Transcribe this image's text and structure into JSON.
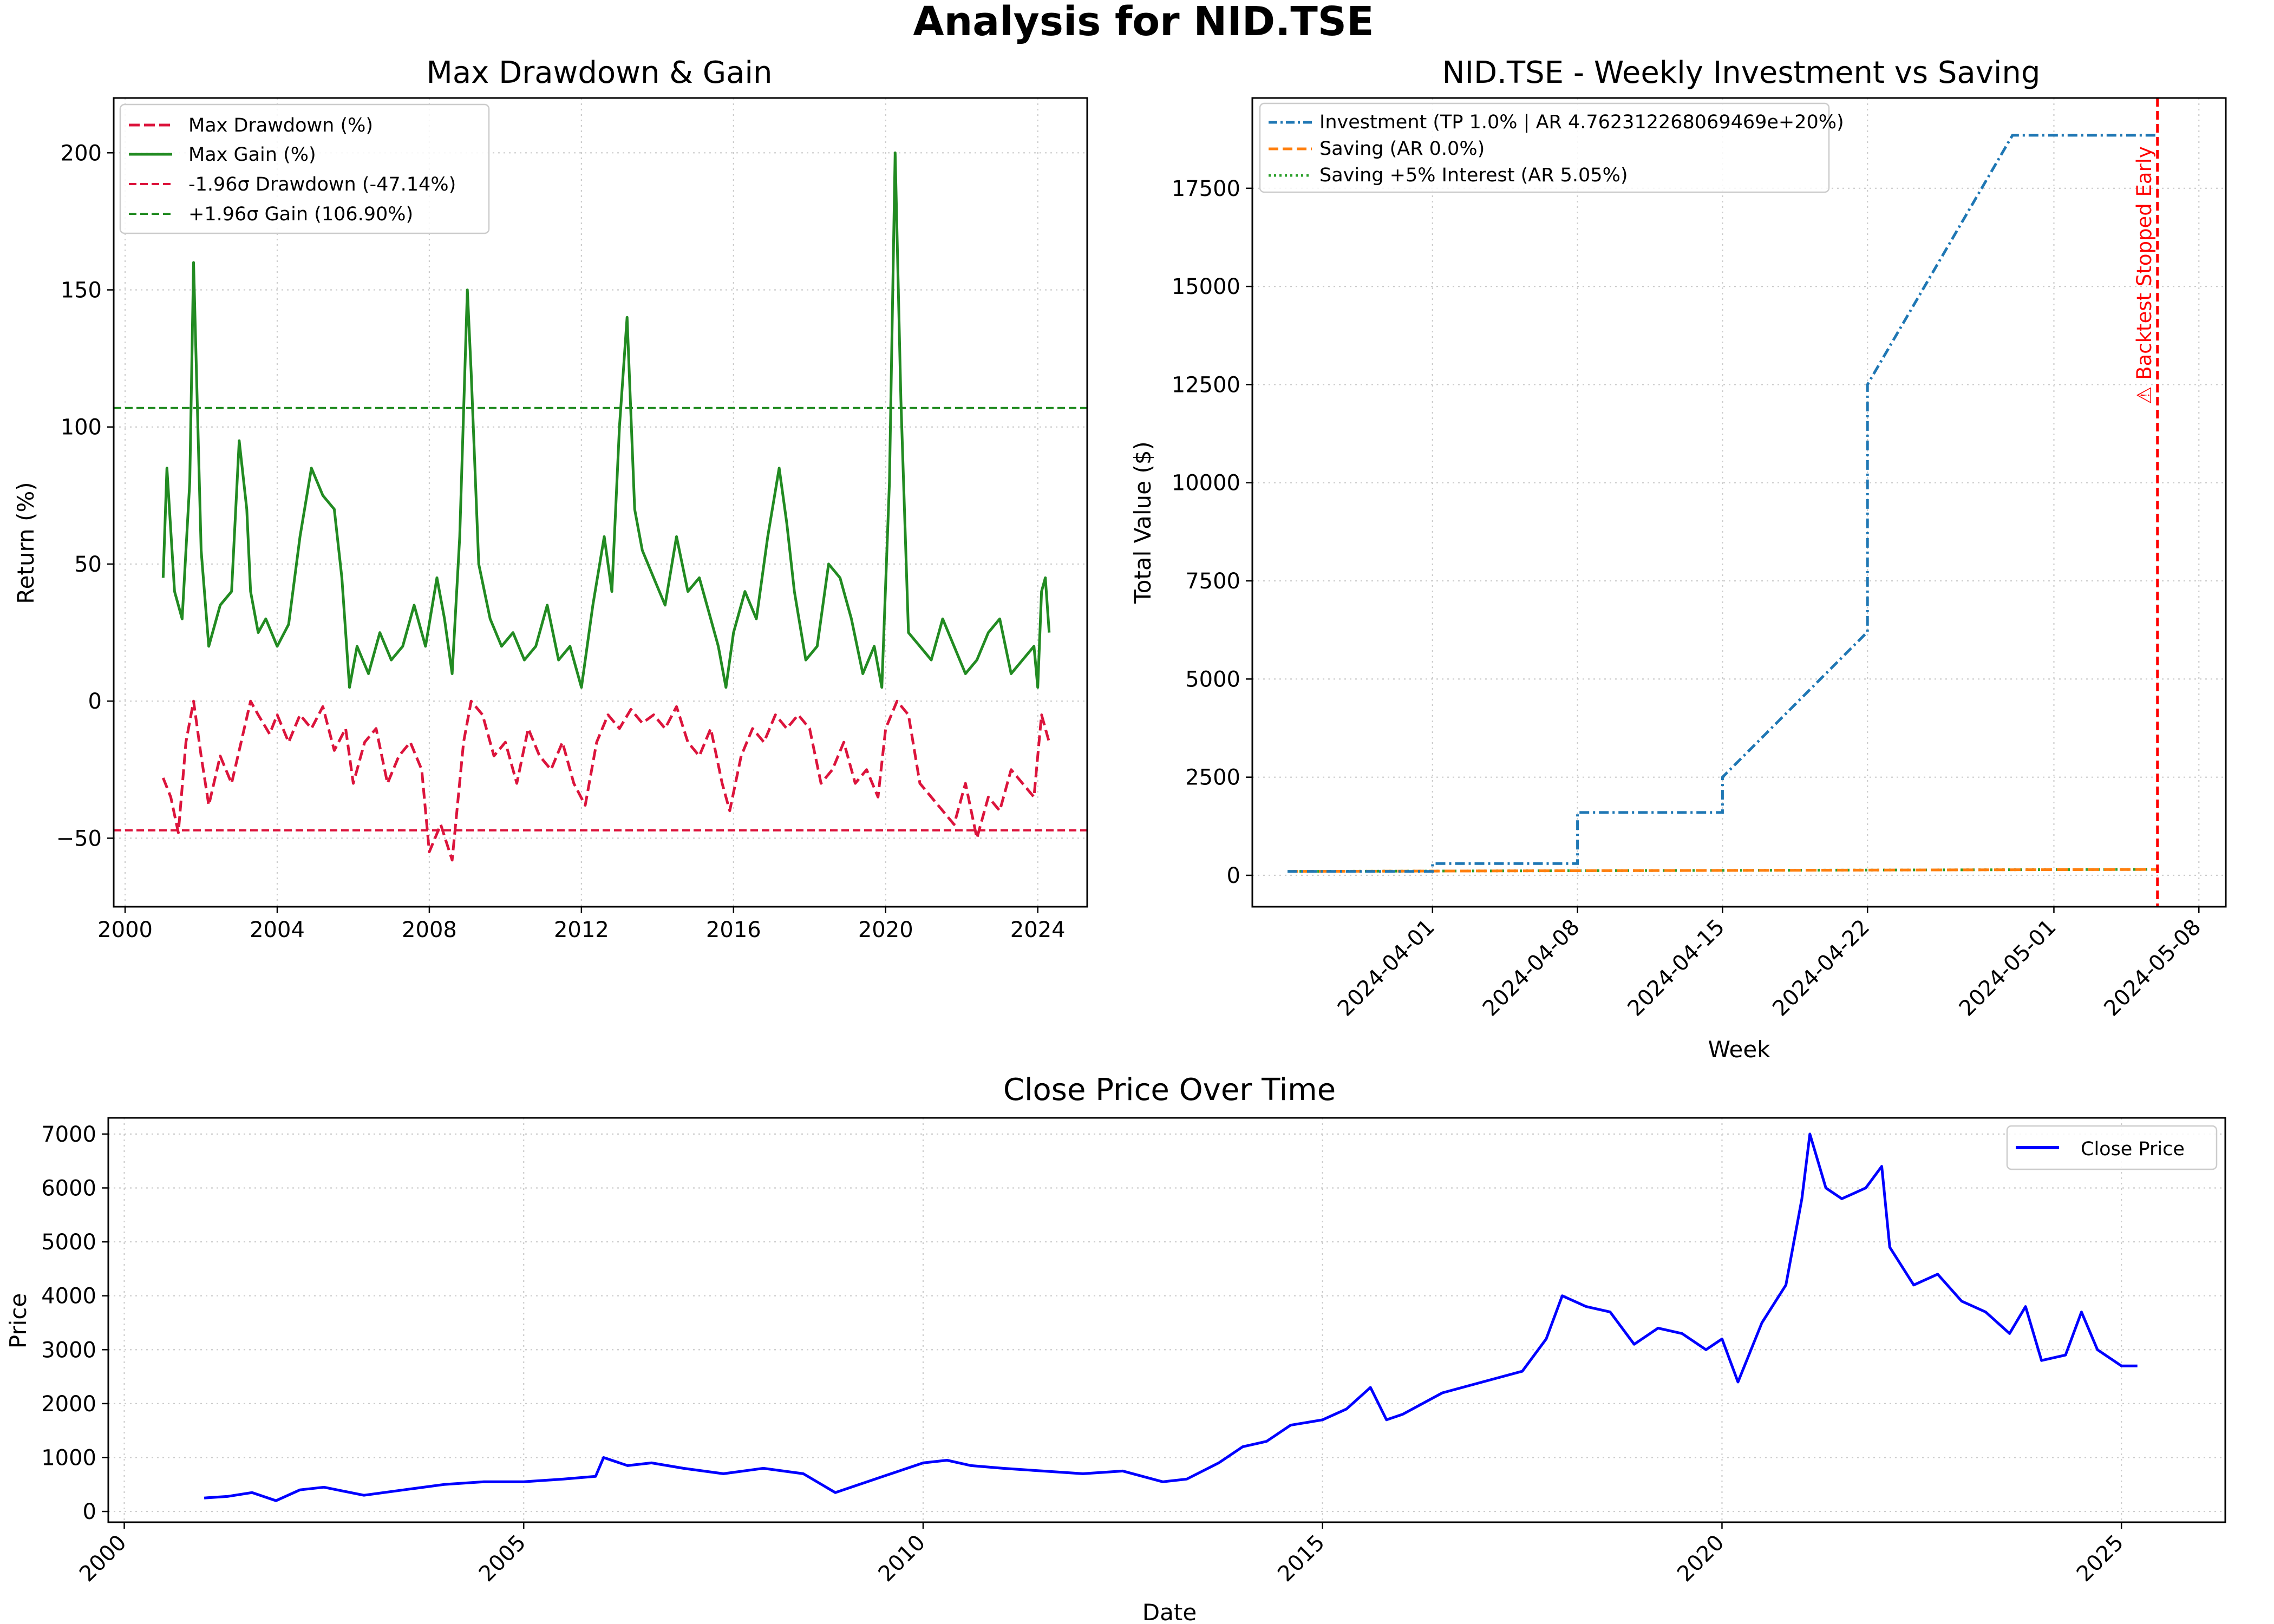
{
  "figure": {
    "suptitle": "Analysis for NID.TSE"
  },
  "chart_data": [
    {
      "id": "drawdown_gain",
      "type": "line",
      "title": "Max Drawdown & Gain",
      "xlabel": "",
      "ylabel": "Return (%)",
      "xlim": [
        1999.7,
        2025.3
      ],
      "ylim": [
        -75,
        220
      ],
      "x_ticks": [
        2000,
        2004,
        2008,
        2012,
        2016,
        2020,
        2024
      ],
      "y_ticks": [
        -50,
        0,
        50,
        100,
        150,
        200
      ],
      "grid": true,
      "legend": {
        "placement": "top-left",
        "entries": [
          "Max Drawdown (%)",
          "Max Gain (%)",
          "-1.96σ Drawdown (-47.14%)",
          "+1.96σ Gain (106.90%)"
        ]
      },
      "series": [
        {
          "name": "Max Gain (%)",
          "color": "#228b22",
          "style": "solid",
          "x": [
            2001.0,
            2001.1,
            2001.3,
            2001.5,
            2001.7,
            2001.8,
            2002.0,
            2002.2,
            2002.5,
            2002.8,
            2003.0,
            2003.2,
            2003.3,
            2003.5,
            2003.7,
            2004.0,
            2004.3,
            2004.6,
            2004.9,
            2005.2,
            2005.5,
            2005.7,
            2005.9,
            2006.1,
            2006.4,
            2006.7,
            2007.0,
            2007.3,
            2007.6,
            2007.9,
            2008.2,
            2008.4,
            2008.6,
            2008.8,
            2009.0,
            2009.1,
            2009.3,
            2009.6,
            2009.9,
            2010.2,
            2010.5,
            2010.8,
            2011.1,
            2011.4,
            2011.7,
            2012.0,
            2012.3,
            2012.6,
            2012.8,
            2013.0,
            2013.2,
            2013.4,
            2013.6,
            2013.9,
            2014.2,
            2014.5,
            2014.8,
            2015.1,
            2015.4,
            2015.6,
            2015.8,
            2016.0,
            2016.3,
            2016.6,
            2016.9,
            2017.2,
            2017.4,
            2017.6,
            2017.9,
            2018.2,
            2018.5,
            2018.8,
            2019.1,
            2019.4,
            2019.7,
            2019.9,
            2020.1,
            2020.25,
            2020.4,
            2020.6,
            2020.9,
            2021.2,
            2021.5,
            2021.8,
            2022.1,
            2022.4,
            2022.7,
            2023.0,
            2023.3,
            2023.6,
            2023.9,
            2024.0,
            2024.1,
            2024.2,
            2024.3
          ],
          "y": [
            45,
            85,
            40,
            30,
            80,
            160,
            55,
            20,
            35,
            40,
            95,
            70,
            40,
            25,
            30,
            20,
            28,
            60,
            85,
            75,
            70,
            45,
            5,
            20,
            10,
            25,
            15,
            20,
            35,
            20,
            45,
            30,
            10,
            60,
            150,
            120,
            50,
            30,
            20,
            25,
            15,
            20,
            35,
            15,
            20,
            5,
            35,
            60,
            40,
            100,
            140,
            70,
            55,
            45,
            35,
            60,
            40,
            45,
            30,
            20,
            5,
            25,
            40,
            30,
            60,
            85,
            65,
            40,
            15,
            20,
            50,
            45,
            30,
            10,
            20,
            5,
            80,
            200,
            110,
            25,
            20,
            15,
            30,
            20,
            10,
            15,
            25,
            30,
            10,
            15,
            20,
            5,
            40,
            45,
            25
          ]
        },
        {
          "name": "Max Drawdown (%)",
          "color": "#dc143c",
          "style": "dashed",
          "x": [
            2001.0,
            2001.2,
            2001.4,
            2001.6,
            2001.8,
            2002.0,
            2002.2,
            2002.5,
            2002.8,
            2003.0,
            2003.3,
            2003.5,
            2003.8,
            2004.0,
            2004.3,
            2004.6,
            2004.9,
            2005.2,
            2005.5,
            2005.8,
            2006.0,
            2006.3,
            2006.6,
            2006.9,
            2007.2,
            2007.5,
            2007.8,
            2008.0,
            2008.3,
            2008.6,
            2008.9,
            2009.1,
            2009.4,
            2009.7,
            2010.0,
            2010.3,
            2010.6,
            2010.9,
            2011.2,
            2011.5,
            2011.8,
            2012.1,
            2012.4,
            2012.7,
            2013.0,
            2013.3,
            2013.6,
            2013.9,
            2014.2,
            2014.5,
            2014.8,
            2015.1,
            2015.4,
            2015.7,
            2015.9,
            2016.2,
            2016.5,
            2016.8,
            2017.1,
            2017.4,
            2017.7,
            2018.0,
            2018.3,
            2018.6,
            2018.9,
            2019.2,
            2019.5,
            2019.8,
            2020.0,
            2020.3,
            2020.6,
            2020.9,
            2021.2,
            2021.5,
            2021.8,
            2022.1,
            2022.4,
            2022.7,
            2023.0,
            2023.3,
            2023.6,
            2023.9,
            2024.1,
            2024.3
          ],
          "y": [
            -28,
            -35,
            -48,
            -15,
            0,
            -20,
            -38,
            -20,
            -30,
            -18,
            0,
            -5,
            -12,
            -5,
            -15,
            -5,
            -10,
            -2,
            -18,
            -10,
            -30,
            -15,
            -10,
            -30,
            -20,
            -15,
            -25,
            -55,
            -45,
            -58,
            -15,
            0,
            -5,
            -20,
            -15,
            -30,
            -10,
            -20,
            -25,
            -15,
            -30,
            -38,
            -15,
            -5,
            -10,
            -3,
            -8,
            -5,
            -10,
            -2,
            -15,
            -20,
            -10,
            -30,
            -40,
            -20,
            -10,
            -15,
            -5,
            -10,
            -5,
            -10,
            -30,
            -25,
            -15,
            -30,
            -25,
            -35,
            -10,
            0,
            -5,
            -30,
            -35,
            -40,
            -45,
            -30,
            -50,
            -35,
            -40,
            -25,
            -30,
            -35,
            -5,
            -15
          ]
        }
      ],
      "hlines": [
        {
          "name": "-1.96σ Drawdown (-47.14%)",
          "y": -47.14,
          "color": "#dc143c"
        },
        {
          "name": "+1.96σ Gain (106.90%)",
          "y": 106.9,
          "color": "#228b22"
        }
      ]
    },
    {
      "id": "weekly_investment",
      "type": "line",
      "title": "NID.TSE - Weekly Investment vs Saving",
      "xlabel": "Week",
      "ylabel": "Total Value ($)",
      "x_ticks": [
        "2024-04-01",
        "2024-04-08",
        "2024-04-15",
        "2024-04-22",
        "2024-05-01",
        "2024-05-08"
      ],
      "y_ticks": [
        0,
        2500,
        5000,
        7500,
        10000,
        12500,
        15000,
        17500
      ],
      "ylim": [
        -800,
        19800
      ],
      "xlim_days": [
        -8.7,
        38.3
      ],
      "grid": true,
      "legend": {
        "placement": "top-left",
        "entries": [
          "Investment (TP 1.0% | AR 4.762312268069469e+20%)",
          "Saving (AR 0.0%)",
          "Saving +5% Interest (AR 5.05%)"
        ]
      },
      "series": [
        {
          "name": "Investment (TP 1.0% | AR 4.762312268069469e+20%)",
          "color": "#1f77b4",
          "style": "dashdot",
          "x": [
            "2024-03-25",
            "2024-04-01",
            "2024-04-01",
            "2024-04-08",
            "2024-04-08",
            "2024-04-15",
            "2024-04-15",
            "2024-04-22",
            "2024-04-22",
            "2024-04-29",
            "2024-05-06"
          ],
          "y": [
            100,
            100,
            300,
            300,
            1600,
            1600,
            2500,
            6200,
            12500,
            18850,
            18850
          ]
        },
        {
          "name": "Saving (AR 0.0%)",
          "color": "#ff7f0e",
          "style": "dashed",
          "x": [
            "2024-03-25",
            "2024-05-06"
          ],
          "y": [
            100,
            150
          ]
        },
        {
          "name": "Saving +5% Interest (AR 5.05%)",
          "color": "#2ca02c",
          "style": "dotted",
          "x": [
            "2024-03-25",
            "2024-05-06"
          ],
          "y": [
            100,
            152
          ]
        }
      ],
      "vline": {
        "x": "2024-05-06",
        "color": "#ff0000",
        "label": "⚠ Backtest Stopped Early"
      }
    },
    {
      "id": "close_price",
      "type": "line",
      "title": "Close Price Over Time",
      "xlabel": "Date",
      "ylabel": "Price",
      "xlim": [
        1999.8,
        2026.3
      ],
      "ylim": [
        -200,
        7300
      ],
      "x_ticks": [
        2000,
        2005,
        2010,
        2015,
        2020,
        2025
      ],
      "y_ticks": [
        0,
        1000,
        2000,
        3000,
        4000,
        5000,
        6000,
        7000
      ],
      "grid": true,
      "legend": {
        "placement": "top-right",
        "entries": [
          "Close Price"
        ]
      },
      "series": [
        {
          "name": "Close Price",
          "color": "#0000ff",
          "style": "solid",
          "x": [
            2001.0,
            2001.3,
            2001.6,
            2001.9,
            2002.2,
            2002.5,
            2003.0,
            2003.5,
            2004.0,
            2004.5,
            2005.0,
            2005.5,
            2005.9,
            2006.0,
            2006.3,
            2006.6,
            2007.0,
            2007.5,
            2008.0,
            2008.5,
            2008.9,
            2009.1,
            2009.5,
            2010.0,
            2010.3,
            2010.6,
            2011.0,
            2011.5,
            2012.0,
            2012.5,
            2013.0,
            2013.3,
            2013.7,
            2014.0,
            2014.3,
            2014.6,
            2015.0,
            2015.3,
            2015.6,
            2015.8,
            2016.0,
            2016.5,
            2017.0,
            2017.5,
            2017.8,
            2018.0,
            2018.3,
            2018.6,
            2018.9,
            2019.2,
            2019.5,
            2019.8,
            2020.0,
            2020.2,
            2020.5,
            2020.8,
            2021.0,
            2021.1,
            2021.3,
            2021.5,
            2021.8,
            2022.0,
            2022.1,
            2022.4,
            2022.7,
            2023.0,
            2023.3,
            2023.6,
            2023.8,
            2024.0,
            2024.3,
            2024.5,
            2024.7,
            2025.0,
            2025.2
          ],
          "y": [
            250,
            280,
            350,
            200,
            400,
            450,
            300,
            400,
            500,
            550,
            550,
            600,
            650,
            1000,
            850,
            900,
            800,
            700,
            800,
            700,
            350,
            450,
            650,
            900,
            950,
            850,
            800,
            750,
            700,
            750,
            550,
            600,
            900,
            1200,
            1300,
            1600,
            1700,
            1900,
            2300,
            1700,
            1800,
            2200,
            2400,
            2600,
            3200,
            4000,
            3800,
            3700,
            3100,
            3400,
            3300,
            3000,
            3200,
            2400,
            3500,
            4200,
            5800,
            7000,
            6000,
            5800,
            6000,
            6400,
            4900,
            4200,
            4400,
            3900,
            3700,
            3300,
            3800,
            2800,
            2900,
            3700,
            3000,
            2700,
            2700
          ]
        }
      ]
    }
  ]
}
